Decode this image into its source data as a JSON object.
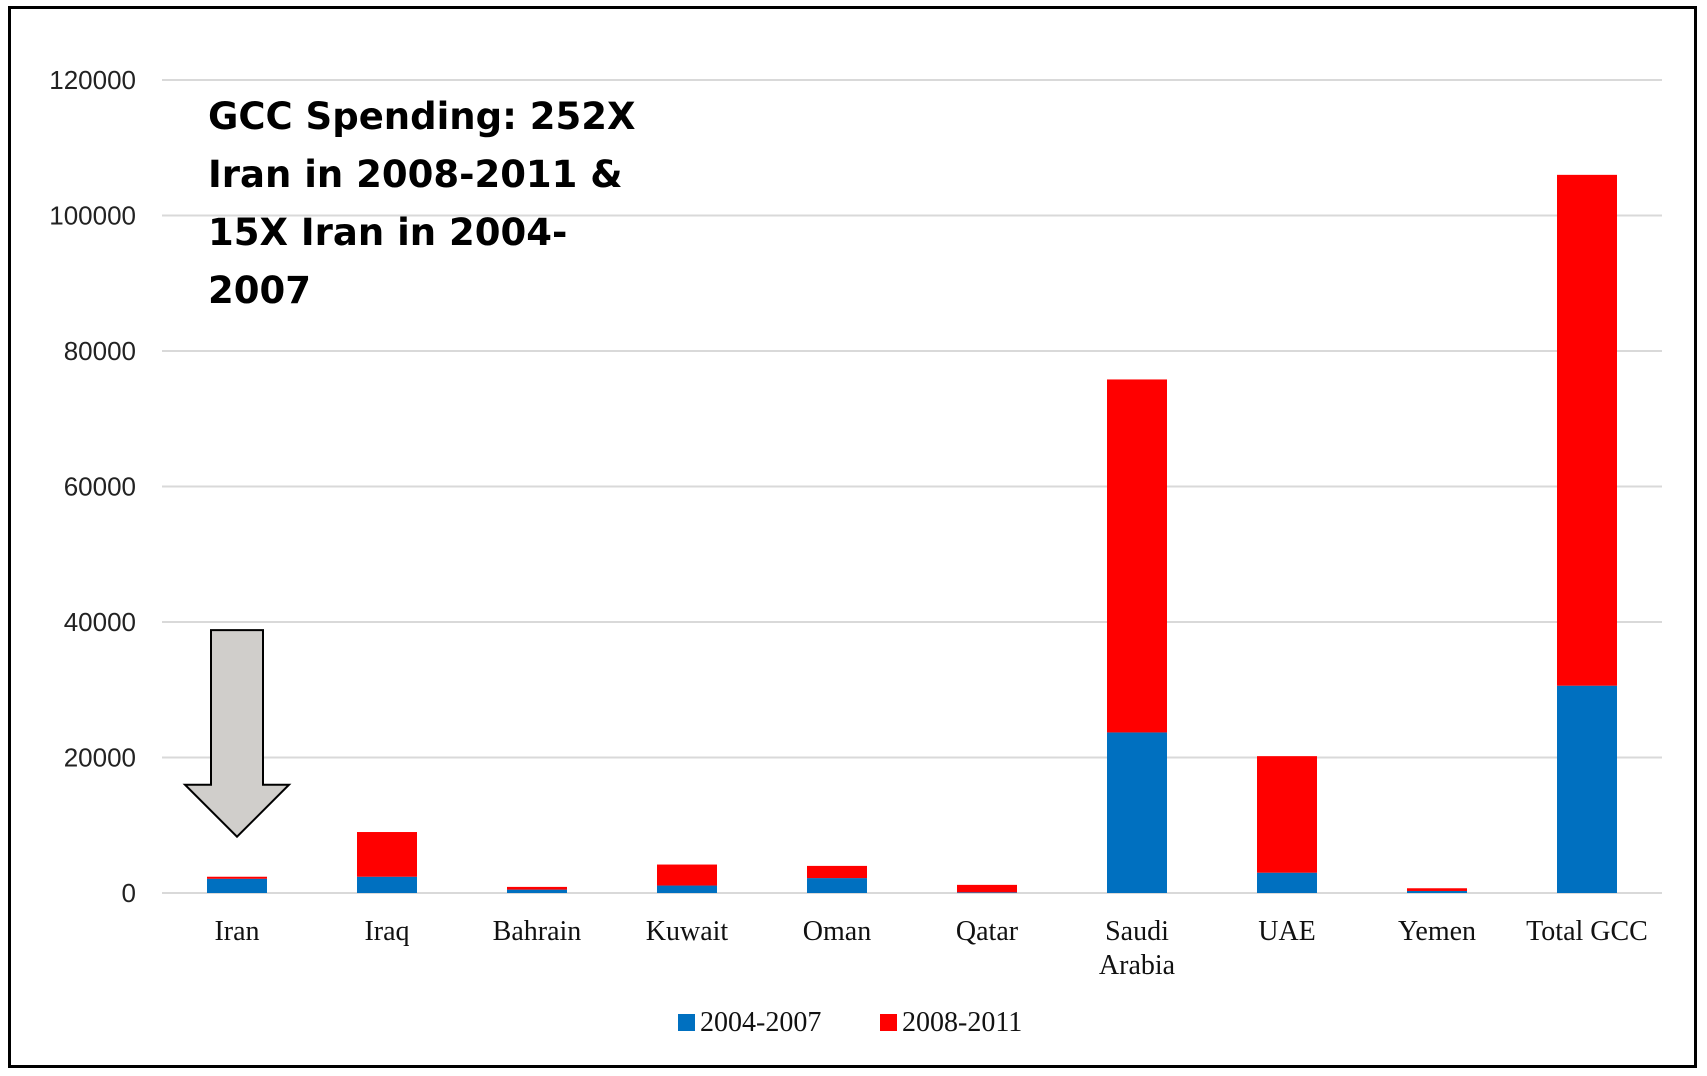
{
  "chart_data": {
    "type": "bar",
    "stacked": true,
    "title": "",
    "xlabel": "",
    "ylabel": "",
    "ylim": [
      0,
      120000
    ],
    "yticks": [
      0,
      20000,
      40000,
      60000,
      80000,
      100000,
      120000
    ],
    "grid": true,
    "legend_position": "bottom",
    "categories": [
      "Iran",
      "Iraq",
      "Bahrain",
      "Kuwait",
      "Oman",
      "Qatar",
      "Saudi Arabia",
      "UAE",
      "Yemen",
      "Total GCC"
    ],
    "category_lines": [
      [
        "Iran"
      ],
      [
        "Iraq"
      ],
      [
        "Bahrain"
      ],
      [
        "Kuwait"
      ],
      [
        "Oman"
      ],
      [
        "Qatar"
      ],
      [
        "Saudi",
        "Arabia"
      ],
      [
        "UAE"
      ],
      [
        "Yemen"
      ],
      [
        "Total GCC"
      ]
    ],
    "series": [
      {
        "name": "2004-2007",
        "color": "#0070c0",
        "values": [
          2100,
          2400,
          500,
          1100,
          2200,
          100,
          23700,
          3000,
          300,
          30600
        ]
      },
      {
        "name": "2008-2011",
        "color": "#ff0000",
        "values": [
          300,
          6600,
          400,
          3100,
          1800,
          1100,
          52100,
          17200,
          400,
          75400
        ]
      }
    ],
    "annotation": {
      "text": "GCC Spending: 252X Iran in 2008-2011 & 15X Iran in 2004-2007",
      "lines": [
        "GCC Spending: 252X",
        "Iran in 2008-2011 &",
        "15X Iran in 2004-",
        "2007"
      ]
    },
    "arrow": {
      "category": "Iran",
      "from_value": 38800,
      "to_value": 8300,
      "color": "#d0cecb"
    }
  }
}
